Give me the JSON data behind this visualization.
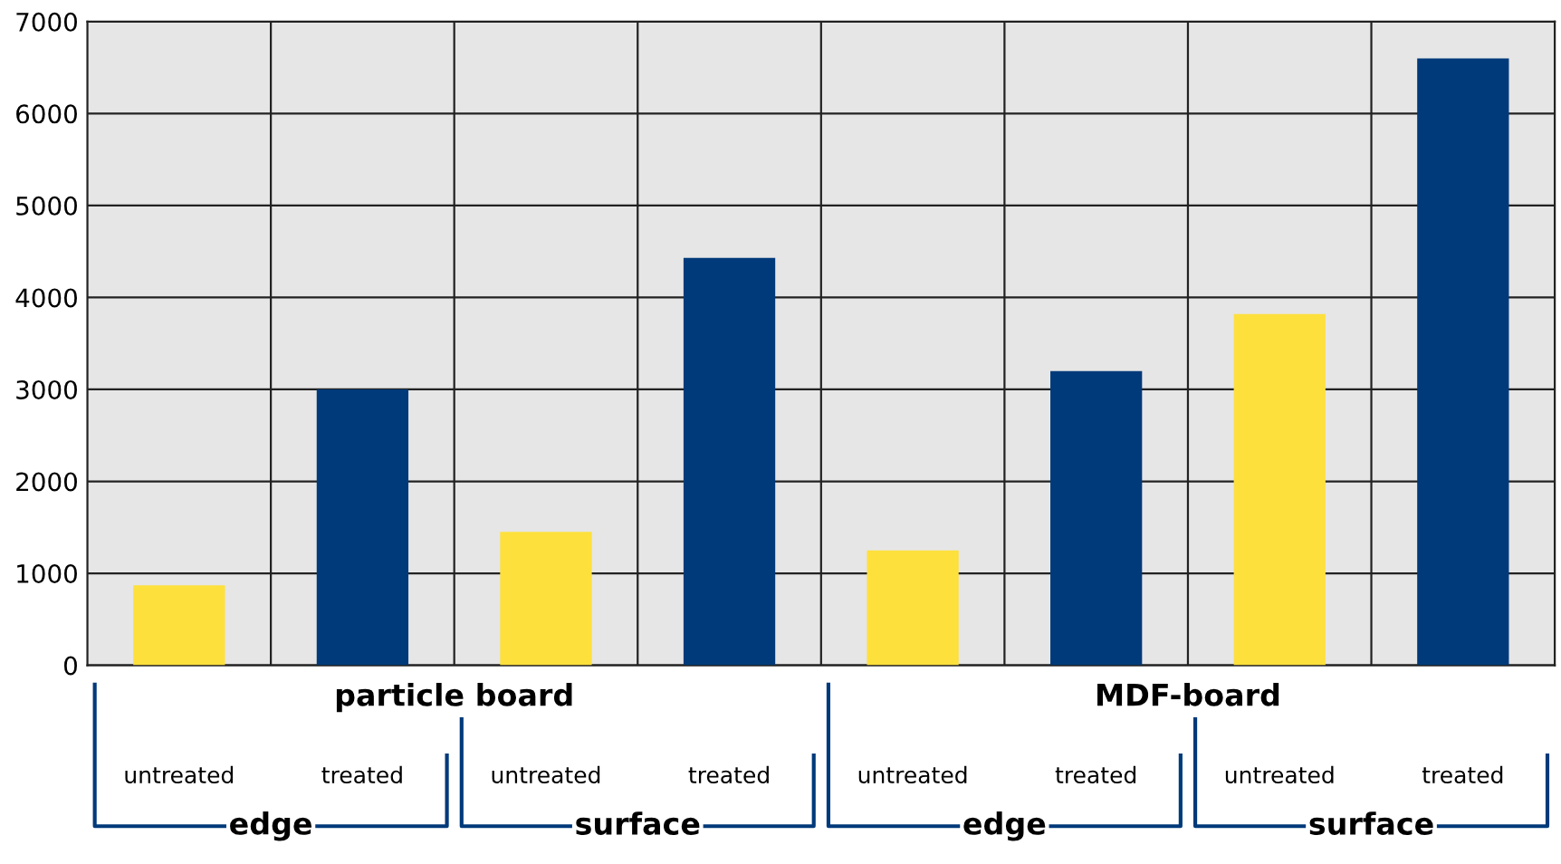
{
  "chart_data": {
    "type": "bar",
    "categories": [
      "untreated",
      "treated",
      "untreated",
      "treated",
      "untreated",
      "treated",
      "untreated",
      "treated"
    ],
    "values": [
      870,
      3000,
      1450,
      4430,
      1250,
      3200,
      3820,
      6600
    ],
    "colors": [
      "#fde03c",
      "#003a7a",
      "#fde03c",
      "#003a7a",
      "#fde03c",
      "#003a7a",
      "#fde03c",
      "#003a7a"
    ],
    "ylim": [
      0,
      7000
    ],
    "yticks": [
      0,
      1000,
      2000,
      3000,
      4000,
      5000,
      6000,
      7000
    ],
    "grid": "y",
    "annotations": [
      "particle board",
      "MDF-board",
      "edge",
      "surface",
      "edge",
      "surface"
    ]
  }
}
